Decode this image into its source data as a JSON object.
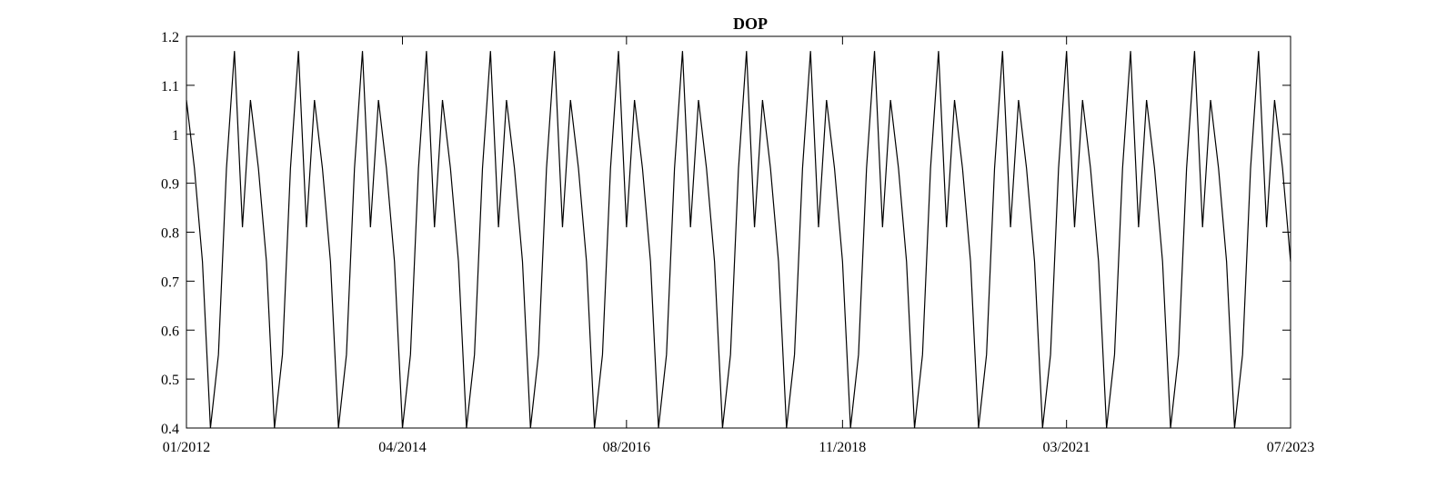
{
  "chart_data": {
    "type": "line",
    "title": "DOP",
    "xlabel": "",
    "ylabel": "",
    "xlim": [
      "2012-01",
      "2023-07"
    ],
    "ylim": [
      0.4,
      1.2
    ],
    "x_ticks": [
      "2012-01",
      "2014-04",
      "2016-08",
      "2018-11",
      "2021-03",
      "2023-07"
    ],
    "x_tick_labels": [
      "01/2012",
      "04/2014",
      "08/2016",
      "11/2018",
      "03/2021",
      "07/2023"
    ],
    "y_ticks": [
      0.4,
      0.5,
      0.6,
      0.7,
      0.8,
      0.9,
      1.0,
      1.1,
      1.2
    ],
    "y_tick_labels": [
      "0.4",
      "0.5",
      "0.6",
      "0.7",
      "0.8",
      "0.9",
      "1",
      "1.1",
      "1.2"
    ],
    "grid": false,
    "series": [
      {
        "color": "#000000",
        "x": [
          "2012-01",
          "2012-02",
          "2012-03",
          "2012-04",
          "2012-05",
          "2012-06",
          "2012-07",
          "2012-08",
          "2012-09",
          "2012-10",
          "2012-11",
          "2012-12",
          "2013-01",
          "2013-02",
          "2013-03",
          "2013-04",
          "2013-05",
          "2013-06",
          "2013-07",
          "2013-08",
          "2013-09",
          "2013-10",
          "2013-11",
          "2013-12",
          "2014-01",
          "2014-02",
          "2014-03",
          "2014-04",
          "2014-05",
          "2014-06",
          "2014-07",
          "2014-08",
          "2014-09",
          "2014-10",
          "2014-11",
          "2014-12",
          "2015-01",
          "2015-02",
          "2015-03",
          "2015-04",
          "2015-05",
          "2015-06",
          "2015-07",
          "2015-08",
          "2015-09",
          "2015-10",
          "2015-11",
          "2015-12",
          "2016-01",
          "2016-02",
          "2016-03",
          "2016-04",
          "2016-05",
          "2016-06",
          "2016-07",
          "2016-08",
          "2016-09",
          "2016-10",
          "2016-11",
          "2016-12",
          "2017-01",
          "2017-02",
          "2017-03",
          "2017-04",
          "2017-05",
          "2017-06",
          "2017-07",
          "2017-08",
          "2017-09",
          "2017-10",
          "2017-11",
          "2017-12",
          "2018-01",
          "2018-02",
          "2018-03",
          "2018-04",
          "2018-05",
          "2018-06",
          "2018-07",
          "2018-08",
          "2018-09",
          "2018-10",
          "2018-11",
          "2018-12",
          "2019-01",
          "2019-02",
          "2019-03",
          "2019-04",
          "2019-05",
          "2019-06",
          "2019-07",
          "2019-08",
          "2019-09",
          "2019-10",
          "2019-11",
          "2019-12",
          "2020-01",
          "2020-02",
          "2020-03",
          "2020-04",
          "2020-05",
          "2020-06",
          "2020-07",
          "2020-08",
          "2020-09",
          "2020-10",
          "2020-11",
          "2020-12",
          "2021-01",
          "2021-02",
          "2021-03",
          "2021-04",
          "2021-05",
          "2021-06",
          "2021-07",
          "2021-08",
          "2021-09",
          "2021-10",
          "2021-11",
          "2021-12",
          "2022-01",
          "2022-02",
          "2022-03",
          "2022-04",
          "2022-05",
          "2022-06",
          "2022-07",
          "2022-08",
          "2022-09",
          "2022-10",
          "2022-11",
          "2022-12",
          "2023-01",
          "2023-02",
          "2023-03",
          "2023-04",
          "2023-05",
          "2023-06",
          "2023-07"
        ],
        "y": [
          1.07,
          0.93,
          0.74,
          0.4,
          0.55,
          0.93,
          1.17,
          0.81,
          1.07,
          0.93,
          0.74,
          0.4,
          0.55,
          0.93,
          1.17,
          0.81,
          1.07,
          0.93,
          0.74,
          0.4,
          0.55,
          0.93,
          1.17,
          0.81,
          1.07,
          0.93,
          0.74,
          0.4,
          0.55,
          0.93,
          1.17,
          0.81,
          1.07,
          0.93,
          0.74,
          0.4,
          0.55,
          0.93,
          1.17,
          0.81,
          1.07,
          0.93,
          0.74,
          0.4,
          0.55,
          0.93,
          1.17,
          0.81,
          1.07,
          0.93,
          0.74,
          0.4,
          0.55,
          0.93,
          1.17,
          0.81,
          1.07,
          0.93,
          0.74,
          0.4,
          0.55,
          0.93,
          1.17,
          0.81,
          1.07,
          0.93,
          0.74,
          0.4,
          0.55,
          0.93,
          1.17,
          0.81,
          1.07,
          0.93,
          0.74,
          0.4,
          0.55,
          0.93,
          1.17,
          0.81,
          1.07,
          0.93,
          0.74,
          0.4,
          0.55,
          0.93,
          1.17,
          0.81,
          1.07,
          0.93,
          0.74,
          0.4,
          0.55,
          0.93,
          1.17,
          0.81,
          1.07,
          0.93,
          0.74,
          0.4,
          0.55,
          0.93,
          1.17,
          0.81,
          1.07,
          0.93,
          0.74,
          0.4,
          0.55,
          0.93,
          1.17,
          0.81,
          1.07,
          0.93,
          0.74,
          0.4,
          0.55,
          0.93,
          1.17,
          0.81,
          1.07,
          0.93,
          0.74,
          0.4,
          0.55,
          0.93,
          1.17,
          0.81,
          1.07,
          0.93,
          0.74,
          0.4,
          0.55,
          0.93,
          1.17,
          0.81,
          1.07,
          0.93,
          0.74
        ]
      }
    ]
  }
}
